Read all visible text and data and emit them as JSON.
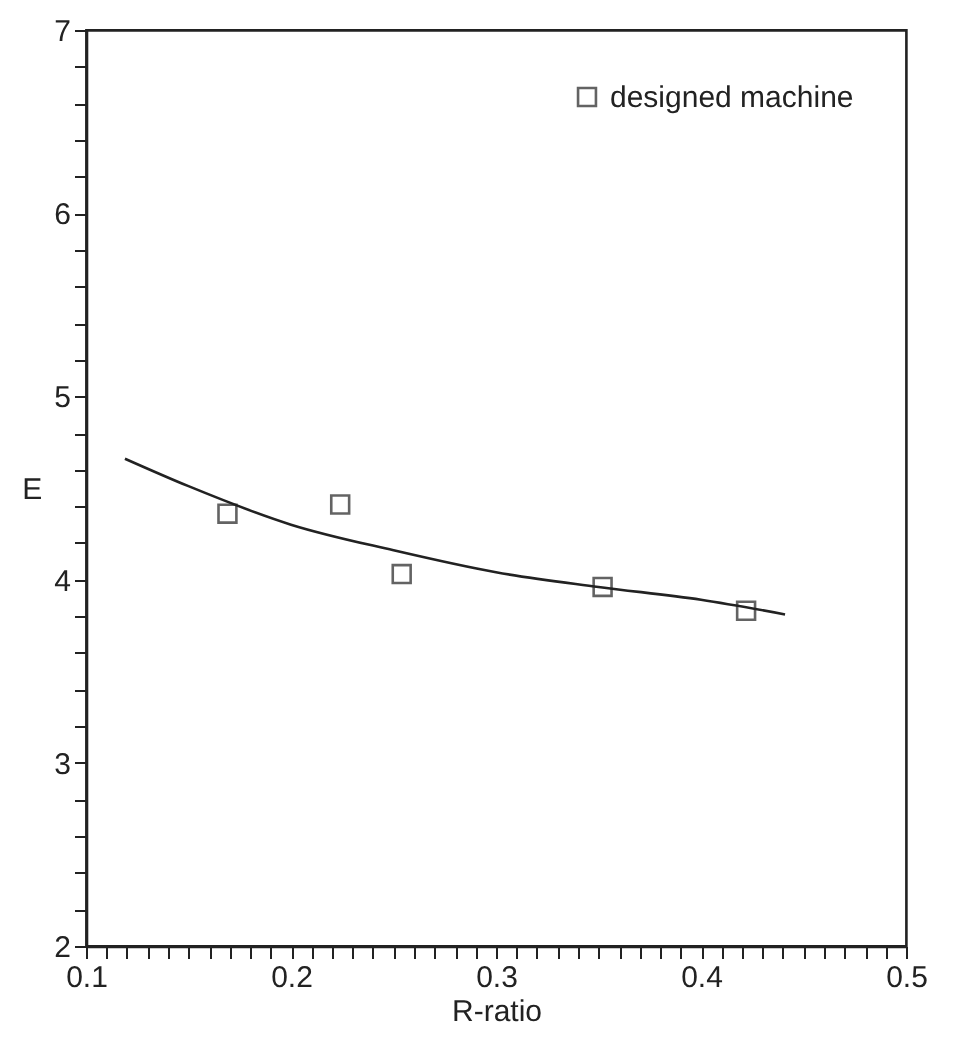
{
  "chart_data": {
    "type": "scatter",
    "xlabel": "R-ratio",
    "ylabel": "E",
    "xlim": [
      0.1,
      0.5
    ],
    "ylim": [
      2,
      7
    ],
    "xticks": [
      0.1,
      {
        "value": 0.11,
        "label": null
      },
      {
        "value": 0.12,
        "label": null
      },
      {
        "value": 0.13,
        "label": null
      },
      {
        "value": 0.14,
        "label": null
      },
      {
        "value": 0.15,
        "label": null
      },
      {
        "value": 0.16,
        "label": null
      },
      {
        "value": 0.17,
        "label": null
      },
      {
        "value": 0.18,
        "label": null
      },
      {
        "value": 0.19,
        "label": null
      },
      0.2,
      {
        "value": 0.21,
        "label": null
      },
      {
        "value": 0.22,
        "label": null
      },
      {
        "value": 0.23,
        "label": null
      },
      {
        "value": 0.24,
        "label": null
      },
      {
        "value": 0.25,
        "label": null
      },
      {
        "value": 0.26,
        "label": null
      },
      {
        "value": 0.27,
        "label": null
      },
      {
        "value": 0.28,
        "label": null
      },
      {
        "value": 0.29,
        "label": null
      },
      0.3,
      {
        "value": 0.31,
        "label": null
      },
      {
        "value": 0.32,
        "label": null
      },
      {
        "value": 0.33,
        "label": null
      },
      {
        "value": 0.34,
        "label": null
      },
      {
        "value": 0.35,
        "label": null
      },
      {
        "value": 0.36,
        "label": null
      },
      {
        "value": 0.37,
        "label": null
      },
      {
        "value": 0.38,
        "label": null
      },
      {
        "value": 0.39,
        "label": null
      },
      0.4,
      {
        "value": 0.41,
        "label": null
      },
      {
        "value": 0.42,
        "label": null
      },
      {
        "value": 0.43,
        "label": null
      },
      {
        "value": 0.44,
        "label": null
      },
      {
        "value": 0.45,
        "label": null
      },
      {
        "value": 0.46,
        "label": null
      },
      {
        "value": 0.47,
        "label": null
      },
      {
        "value": 0.48,
        "label": null
      },
      {
        "value": 0.49,
        "label": null
      },
      0.5
    ],
    "yticks": [
      2,
      {
        "value": 2.2,
        "label": null
      },
      {
        "value": 2.4,
        "label": null
      },
      {
        "value": 2.6,
        "label": null
      },
      {
        "value": 2.8,
        "label": null
      },
      3,
      {
        "value": 3.2,
        "label": null
      },
      {
        "value": 3.4,
        "label": null
      },
      {
        "value": 3.6,
        "label": null
      },
      {
        "value": 3.8,
        "label": null
      },
      4,
      {
        "value": 4.2,
        "label": null
      },
      {
        "value": 4.4,
        "label": null
      },
      {
        "value": 4.6,
        "label": null
      },
      {
        "value": 4.8,
        "label": null
      },
      5,
      {
        "value": 5.2,
        "label": null
      },
      {
        "value": 5.4,
        "label": null
      },
      {
        "value": 5.6,
        "label": null
      },
      {
        "value": 5.8,
        "label": null
      },
      6,
      {
        "value": 6.2,
        "label": null
      },
      {
        "value": 6.4,
        "label": null
      },
      {
        "value": 6.6,
        "label": null
      },
      {
        "value": 6.8,
        "label": null
      },
      7
    ],
    "grid": false,
    "legend": "top right",
    "marker": "square",
    "series": [
      {
        "name": "designed machine",
        "color": "#222222",
        "x": [
          0.169,
          0.224,
          0.254,
          0.352,
          0.422
        ],
        "values": [
          4.36,
          4.41,
          4.03,
          3.96,
          3.83
        ]
      },
      {
        "type": "line",
        "color": "#222222",
        "marker": "none",
        "line_style": "solid",
        "x": [
          0.119,
          0.15,
          0.2,
          0.25,
          0.3,
          0.35,
          0.4,
          0.441
        ],
        "values": [
          4.66,
          4.51,
          4.3,
          4.16,
          4.04,
          3.96,
          3.89,
          3.81
        ]
      }
    ]
  }
}
